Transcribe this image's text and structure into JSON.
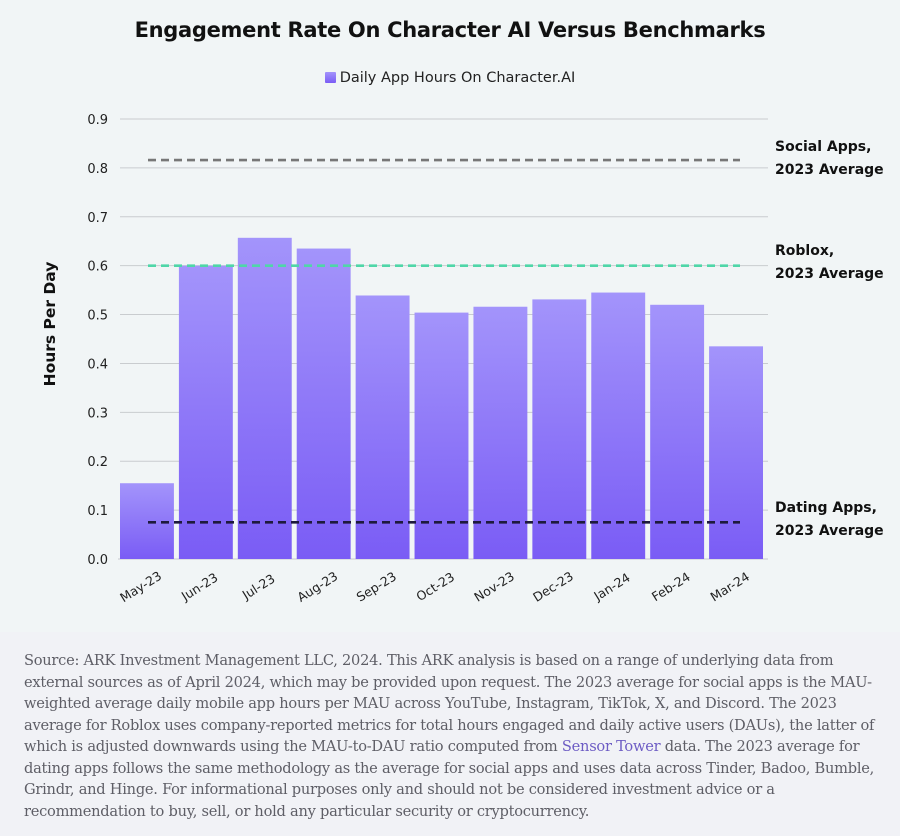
{
  "chart_data": {
    "type": "bar",
    "title": "Engagement Rate On Character AI Versus Benchmarks",
    "legend": [
      {
        "name": "Daily App Hours On Character.AI",
        "color": "#8b73f8"
      }
    ],
    "legend_position": "top-center",
    "xlabel": "",
    "ylabel": "Hours Per Day",
    "ylim": [
      0.0,
      0.9
    ],
    "yticks": [
      "0.0",
      "0.1",
      "0.2",
      "0.3",
      "0.4",
      "0.5",
      "0.6",
      "0.7",
      "0.8",
      "0.9"
    ],
    "grid": true,
    "categories": [
      "May-23",
      "Jun-23",
      "Jul-23",
      "Aug-23",
      "Sep-23",
      "Oct-23",
      "Nov-23",
      "Dec-23",
      "Jan-24",
      "Feb-24",
      "Mar-24"
    ],
    "series": [
      {
        "name": "Daily App Hours On Character.AI",
        "values": [
          0.155,
          0.6,
          0.657,
          0.635,
          0.539,
          0.504,
          0.516,
          0.531,
          0.545,
          0.52,
          0.435
        ],
        "color_top": "#a394fb",
        "color_bottom": "#7a5cf5"
      }
    ],
    "reference_lines": [
      {
        "name": "Social Apps, 2023 Average",
        "label_lines": [
          "Social Apps,",
          "2023 Average"
        ],
        "value": 0.816,
        "color": "#777777",
        "style": "dashed"
      },
      {
        "name": "Roblox, 2023 Average",
        "label_lines": [
          "Roblox,",
          "2023 Average"
        ],
        "value": 0.6,
        "color": "#4fd6a8",
        "style": "dashed"
      },
      {
        "name": "Dating Apps, 2023 Average",
        "label_lines": [
          "Dating Apps,",
          "2023 Average"
        ],
        "value": 0.075,
        "color": "#1e1a3e",
        "style": "dashed"
      }
    ]
  },
  "source": {
    "before_link": "Source: ARK Investment Management LLC, 2024. This ARK analysis is based on a range of underlying data from external sources as of April 2024, which may be provided upon request. The 2023 average for social apps is the MAU-weighted average daily mobile app hours per MAU across YouTube, Instagram, TikTok, X, and Discord. The 2023 average for Roblox uses company-reported metrics for total hours engaged and daily active users (DAUs), the latter of which is adjusted downwards using the MAU-to-DAU ratio computed from ",
    "link": "Sensor Tower",
    "after_link": " data. The 2023 average for dating apps follows the same methodology as the average for social apps and uses data across Tinder, Badoo, Bumble, Grindr, and Hinge. For informational purposes only and should not be considered investment advice or a recommendation to buy, sell, or hold any particular security or cryptocurrency."
  }
}
